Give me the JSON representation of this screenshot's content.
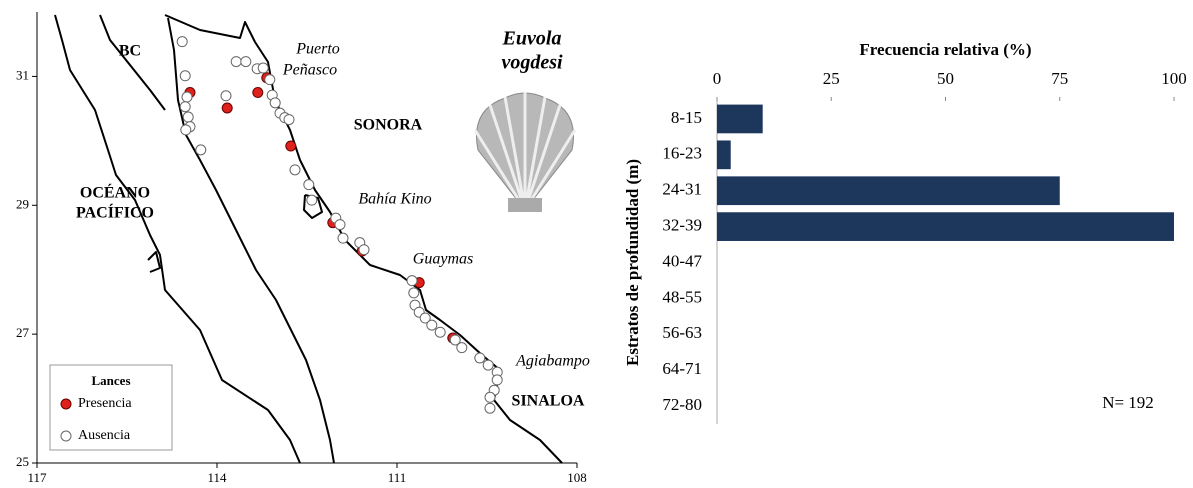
{
  "chart_data": [
    {
      "type": "scatter",
      "title": [
        "Euvola",
        "vogdesi"
      ],
      "annotations": [
        "BC",
        "SONORA",
        "OCÉANO",
        "PACÍFICO",
        "Puerto",
        "Peñasco",
        "Bahía Kino",
        "Guaymas",
        "Agiabampo",
        "SINALOA"
      ],
      "legend_title": "Lances",
      "legend": "lower left",
      "xlim": [
        117,
        108
      ],
      "xticks": [
        117,
        114,
        111,
        108
      ],
      "ylim": [
        25,
        32
      ],
      "yticks": [
        25,
        27,
        29,
        31
      ],
      "series": [
        {
          "name": "Presencia",
          "color": "#e0201c",
          "x": [
            114.45,
            113.83,
            113.17,
            113.32,
            112.77,
            112.07,
            111.58,
            110.63,
            110.07
          ],
          "values": [
            30.75,
            30.51,
            30.98,
            30.75,
            29.92,
            28.73,
            28.29,
            27.8,
            26.94
          ]
        },
        {
          "name": "Ausencia",
          "color": "#ffffff",
          "x": [
            114.58,
            114.53,
            114.5,
            114.53,
            114.48,
            114.45,
            114.52,
            114.27,
            113.85,
            113.68,
            113.52,
            113.33,
            113.23,
            113.12,
            113.08,
            113.03,
            112.95,
            112.87,
            112.8,
            112.7,
            112.47,
            112.42,
            112.02,
            111.95,
            111.9,
            111.62,
            111.55,
            110.75,
            110.72,
            110.7,
            110.63,
            110.53,
            110.42,
            110.28,
            110.03,
            109.92,
            109.62,
            109.48,
            109.33,
            109.33,
            109.38,
            109.45,
            109.45
          ],
          "values": [
            31.54,
            31.01,
            30.68,
            30.53,
            30.37,
            30.22,
            30.17,
            29.86,
            30.7,
            31.23,
            31.23,
            31.12,
            31.13,
            30.95,
            30.71,
            30.59,
            30.43,
            30.36,
            30.33,
            29.55,
            29.32,
            29.08,
            28.8,
            28.7,
            28.49,
            28.42,
            28.31,
            27.83,
            27.64,
            27.45,
            27.34,
            27.25,
            27.14,
            27.03,
            26.91,
            26.79,
            26.63,
            26.52,
            26.41,
            26.29,
            26.13,
            26.02,
            25.85
          ]
        }
      ]
    },
    {
      "type": "bar",
      "orientation": "horizontal",
      "x_label": "Frecuencia relativa (%)",
      "y_label": "Estratos de profundidad (m)",
      "annotation": "N= 192",
      "categories": [
        "8-15",
        "16-23",
        "24-31",
        "32-39",
        "40-47",
        "48-55",
        "56-63",
        "64-71",
        "72-80"
      ],
      "values": [
        10,
        3,
        75,
        100,
        0,
        0,
        0,
        0,
        0
      ],
      "color": "#1c365c",
      "xlim": [
        0,
        100
      ],
      "xticks": [
        0,
        25,
        50,
        75,
        100
      ]
    }
  ]
}
